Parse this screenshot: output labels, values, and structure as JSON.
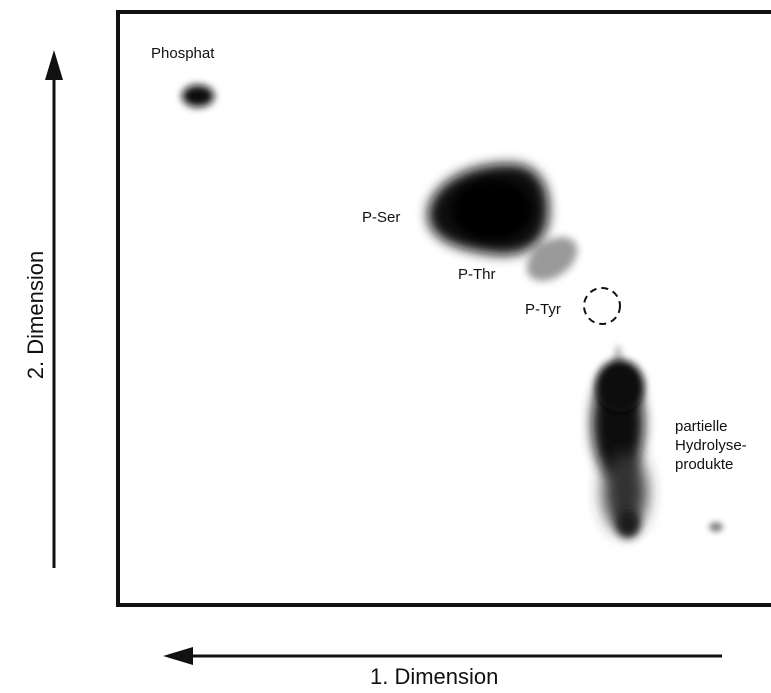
{
  "labels": {
    "phosphat": "Phosphat",
    "p_ser": "P-Ser",
    "p_thr": "P-Thr",
    "p_tyr": "P-Tyr",
    "hydrolyse": [
      "partielle",
      "Hydrolyse-",
      "produkte"
    ]
  },
  "axes": {
    "y_title": "2. Dimension",
    "x_title": "1. Dimension"
  },
  "colors": {
    "ink": "#111111",
    "spot_dark": "#0d0d0d",
    "spot_light": "#9a9a9a"
  }
}
